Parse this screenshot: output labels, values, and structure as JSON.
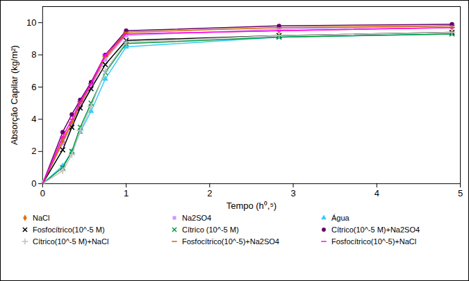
{
  "chart_data": {
    "type": "line",
    "x_label": "Tempo (h⁰,⁵)",
    "y_label": "Absorção Capilar (kg/m²)",
    "x": [
      0,
      0.24,
      0.35,
      0.45,
      0.58,
      0.75,
      1,
      2.83,
      4.9
    ],
    "xlim": [
      0,
      5
    ],
    "xticks": [
      0,
      1,
      2,
      3,
      4,
      5
    ],
    "ylim": [
      0,
      11
    ],
    "yticks": [
      0,
      2,
      4,
      6,
      8,
      10
    ],
    "grid": false,
    "legend": "bottom",
    "series": [
      {
        "name": "NaCl",
        "color": "#e46c0a",
        "marker": "diamond",
        "values": [
          0,
          2.8,
          3.7,
          4.9,
          6.1,
          7.8,
          9.3,
          9.5,
          9.7
        ]
      },
      {
        "name": "Na2SO4",
        "color": "#cc99ff",
        "marker": "square",
        "values": [
          0,
          2.5,
          3.6,
          4.8,
          6.0,
          7.7,
          9.2,
          9.6,
          9.8
        ]
      },
      {
        "name": "Água",
        "color": "#33ccff",
        "marker": "triangle",
        "values": [
          0,
          1.1,
          2.0,
          3.2,
          4.5,
          6.5,
          8.5,
          9.1,
          9.3
        ]
      },
      {
        "name": "Fosfocítrico(10^-5 M)",
        "color": "#000000",
        "marker": "times",
        "values": [
          0,
          2.1,
          3.5,
          4.7,
          5.9,
          7.4,
          8.9,
          9.2,
          9.4
        ]
      },
      {
        "name": "Cítrico (10^-5 M)",
        "color": "#009933",
        "marker": "times",
        "values": [
          0,
          1.0,
          2.0,
          3.5,
          5.0,
          6.9,
          8.7,
          9.1,
          9.3
        ]
      },
      {
        "name": "Cítrico(10^-5 M)+Na2SO4",
        "color": "#660066",
        "marker": "circle",
        "values": [
          0,
          3.2,
          4.3,
          5.2,
          6.3,
          8.0,
          9.5,
          9.8,
          9.9
        ]
      },
      {
        "name": "Cítrico(10^-5 M)+NaCl",
        "color": "#c0c0c0",
        "marker": "plus",
        "values": [
          0,
          0.8,
          1.8,
          3.3,
          4.8,
          7.0,
          8.8,
          9.2,
          9.4
        ]
      },
      {
        "name": "Fosfocítrico(10^-5)+Na2SO4",
        "color": "#cc6600",
        "marker": "dash",
        "values": [
          0,
          2.6,
          3.8,
          5.0,
          6.2,
          7.9,
          9.4,
          9.7,
          9.8
        ]
      },
      {
        "name": "Fosfocítrico(10^-5)+NaCl",
        "color": "#ff00ff",
        "marker": "dash",
        "values": [
          0,
          2.9,
          4.0,
          5.1,
          6.2,
          8.0,
          9.3,
          9.5,
          9.7
        ]
      }
    ]
  }
}
